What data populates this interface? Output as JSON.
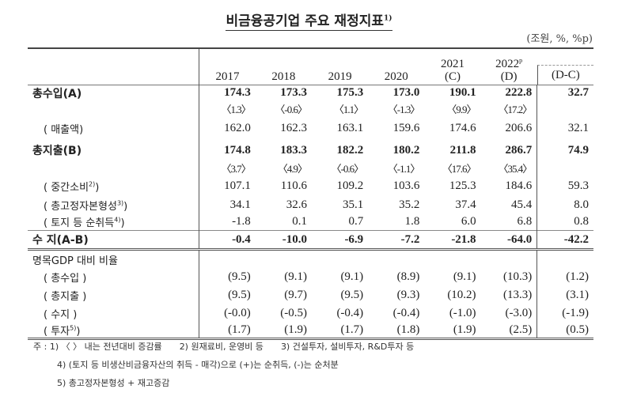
{
  "title": "비금융공기업 주요 재정지표",
  "title_note": "1)",
  "unit": "(조원, %, %p)",
  "columns": [
    {
      "year": "2017",
      "sub": ""
    },
    {
      "year": "2018",
      "sub": ""
    },
    {
      "year": "2019",
      "sub": ""
    },
    {
      "year": "2020",
      "sub": ""
    },
    {
      "year": "2021",
      "sub": "(C)"
    },
    {
      "year": "2022",
      "sup": "p",
      "sub": "(D)"
    }
  ],
  "diff_header": "(D-C)",
  "rows": [
    {
      "label": "총수입(A)",
      "values": [
        "174.3",
        "173.3",
        "175.3",
        "173.0",
        "190.1",
        "222.8"
      ],
      "diff": "32.7",
      "bold": true
    },
    {
      "label": "",
      "values": [
        "〈1.3〉",
        "〈-0.6〉",
        "〈1.1〉",
        "〈-1.3〉",
        "〈9.9〉",
        "〈17.2〉"
      ],
      "diff": "",
      "pct": true
    },
    {
      "label": "( 매출액)",
      "values": [
        "162.0",
        "162.3",
        "163.1",
        "159.6",
        "174.6",
        "206.6"
      ],
      "diff": "32.1"
    },
    {
      "label": "총지출(B)",
      "values": [
        "174.8",
        "183.3",
        "182.2",
        "180.2",
        "211.8",
        "286.7"
      ],
      "diff": "74.9",
      "bold": true
    },
    {
      "label": "",
      "values": [
        "〈3.7〉",
        "〈4.9〉",
        "〈-0.6〉",
        "〈-1.1〉",
        "〈17.6〉",
        "〈35.4〉"
      ],
      "diff": "",
      "pct": true
    },
    {
      "label": "( 중간소비",
      "note": "2)",
      "close": ")",
      "values": [
        "107.1",
        "110.6",
        "109.2",
        "103.6",
        "125.3",
        "184.6"
      ],
      "diff": "59.3"
    },
    {
      "label": "( 총고정자본형성",
      "note": "3)",
      "close": ")",
      "values": [
        "34.1",
        "32.6",
        "35.1",
        "35.2",
        "37.4",
        "45.4"
      ],
      "diff": "8.0"
    },
    {
      "label": "( 토지 등 순취득",
      "note": "4)",
      "close": ")",
      "values": [
        "-1.8",
        "0.1",
        "0.7",
        "1.8",
        "6.0",
        "6.8"
      ],
      "diff": "0.8"
    },
    {
      "label": "수 지(A-B)",
      "values": [
        "-0.4",
        "-10.0",
        "-6.9",
        "-7.2",
        "-21.8",
        "-64.0"
      ],
      "diff": "-42.2",
      "bold": true
    },
    {
      "label": "명목GDP 대비 비율",
      "values": [
        "",
        "",
        "",
        "",
        "",
        ""
      ],
      "diff": ""
    },
    {
      "label": "( 총수입 )",
      "values": [
        "(9.5)",
        "(9.1)",
        "(9.1)",
        "(8.9)",
        "(9.1)",
        "(10.3)"
      ],
      "diff": "(1.2)"
    },
    {
      "label": "( 총지출 )",
      "values": [
        "(9.5)",
        "(9.7)",
        "(9.5)",
        "(9.3)",
        "(10.2)",
        "(13.3)"
      ],
      "diff": "(3.1)"
    },
    {
      "label": "( 수지 )",
      "values": [
        "(-0.0)",
        "(-0.5)",
        "(-0.4)",
        "(-0.4)",
        "(-1.0)",
        "(-3.0)"
      ],
      "diff": "(-1.9)"
    },
    {
      "label": "( 투자",
      "note": "5)",
      "close": ")",
      "values": [
        "(1.7)",
        "(1.9)",
        "(1.7)",
        "(1.8)",
        "(1.9)",
        "(2.5)"
      ],
      "diff": "(0.5)"
    }
  ],
  "notes": {
    "prefix": "주 :",
    "n1": "1) 〈 〉 내는 전년대비 증감률",
    "n2": "2) 원재료비, 운영비 등",
    "n3": "3) 건설투자, 설비투자, R&D투자 등",
    "n4": "4) (토지 등 비생산비금융자산의 취득 - 매각)으로 (+)는 순취득, (-)는 순처분",
    "n5": "5) 총고정자본형성 + 재고증감"
  }
}
